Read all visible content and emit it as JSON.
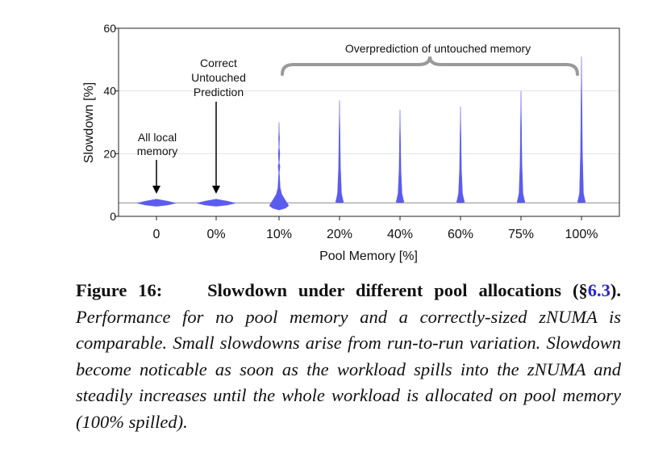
{
  "chart_data": {
    "type": "violin",
    "xlabel": "Pool Memory [%]",
    "ylabel": "Slowdown [%]",
    "ylim": [
      0,
      60
    ],
    "yticks": [
      0,
      20,
      40,
      60
    ],
    "baseline": 4.3,
    "color": "#5b5bf0",
    "categories": [
      "0",
      "0%",
      "10%",
      "20%",
      "40%",
      "60%",
      "75%",
      "100%"
    ],
    "violins": [
      {
        "min": 3.2,
        "max": 5.5
      },
      {
        "min": 3.2,
        "max": 5.5
      },
      {
        "min": 2.0,
        "max": 30
      },
      {
        "min": 4.3,
        "max": 37
      },
      {
        "min": 4.3,
        "max": 34
      },
      {
        "min": 4.3,
        "max": 35
      },
      {
        "min": 4.3,
        "max": 40
      },
      {
        "min": 4.3,
        "max": 51
      }
    ],
    "annotations": {
      "all_local": [
        "All local",
        "memory"
      ],
      "correct": [
        "Correct",
        "Untouched",
        "Prediction"
      ],
      "overprediction": "Overprediction of untouched memory"
    }
  },
  "caption": {
    "figure_label": "Figure 16:",
    "figure_title": "Slowdown under different pool allocations",
    "ref_open": "(§",
    "ref": "6.3",
    "ref_close": ").",
    "body": "Performance for no pool memory and a correctly-sized zNUMA is comparable. Small slowdowns arise from run-to-run variation. Slowdown become noticable as soon as the workload spills into the zNUMA and steadily increases until the whole workload is allocated on pool memory (100% spilled)."
  }
}
